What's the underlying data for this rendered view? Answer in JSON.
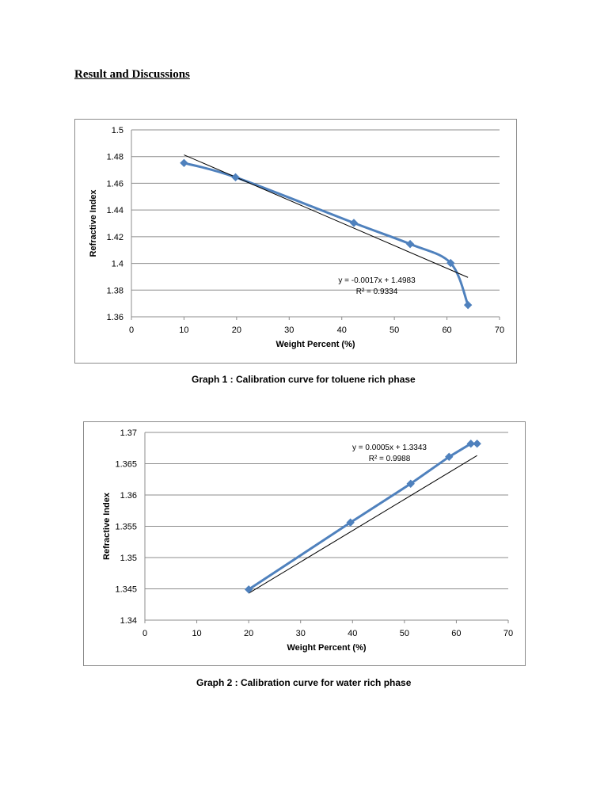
{
  "heading": "Result and Discussions",
  "chart_data": [
    {
      "type": "line",
      "xlabel": "Weight Percent (%)",
      "ylabel": "Refractive Index",
      "xlim": [
        0,
        70
      ],
      "ylim": [
        1.36,
        1.5
      ],
      "xticks": [
        "0",
        "10",
        "20",
        "30",
        "40",
        "50",
        "60",
        "70"
      ],
      "yticks": [
        "1.36",
        "1.38",
        "1.4",
        "1.42",
        "1.44",
        "1.46",
        "1.48",
        "1.5"
      ],
      "grid": "horizontal",
      "smooth": true,
      "series": [
        {
          "x": [
            10,
            19.8,
            42.3,
            53,
            60.7,
            64
          ],
          "y": [
            1.4752,
            1.4645,
            1.4303,
            1.4145,
            1.4003,
            1.3688
          ]
        }
      ],
      "trendline": {
        "type": "linear",
        "slope": -0.0017,
        "intercept": 1.4983,
        "x_range": [
          10,
          64
        ],
        "equation": "y = -0.0017x + 1.4983",
        "r_squared": "R² = 0.9334"
      },
      "series_color": "#4f81bd",
      "trendline_color": "#000000",
      "caption": "Graph 1 : Calibration curve for toluene rich phase"
    },
    {
      "type": "line",
      "xlabel": "Weight Percent (%)",
      "ylabel": "Refractive Index",
      "xlim": [
        0,
        70
      ],
      "ylim": [
        1.34,
        1.37
      ],
      "xticks": [
        "0",
        "10",
        "20",
        "30",
        "40",
        "50",
        "60",
        "70"
      ],
      "yticks": [
        "1.34",
        "1.345",
        "1.35",
        "1.355",
        "1.36",
        "1.365",
        "1.37"
      ],
      "grid": "horizontal",
      "smooth": false,
      "series": [
        {
          "x": [
            20,
            39.6,
            51.2,
            58.6,
            62.8,
            64
          ],
          "y": [
            1.3449,
            1.3556,
            1.3618,
            1.3661,
            1.3682,
            1.3682
          ]
        }
      ],
      "trendline": {
        "type": "linear",
        "slope": 0.0005,
        "intercept": 1.3343,
        "x_range": [
          20,
          64
        ],
        "equation": "y = 0.0005x + 1.3343",
        "r_squared": "R² = 0.9988"
      },
      "series_color": "#4f81bd",
      "trendline_color": "#000000",
      "caption": "Graph 2 : Calibration curve for water rich phase"
    }
  ]
}
